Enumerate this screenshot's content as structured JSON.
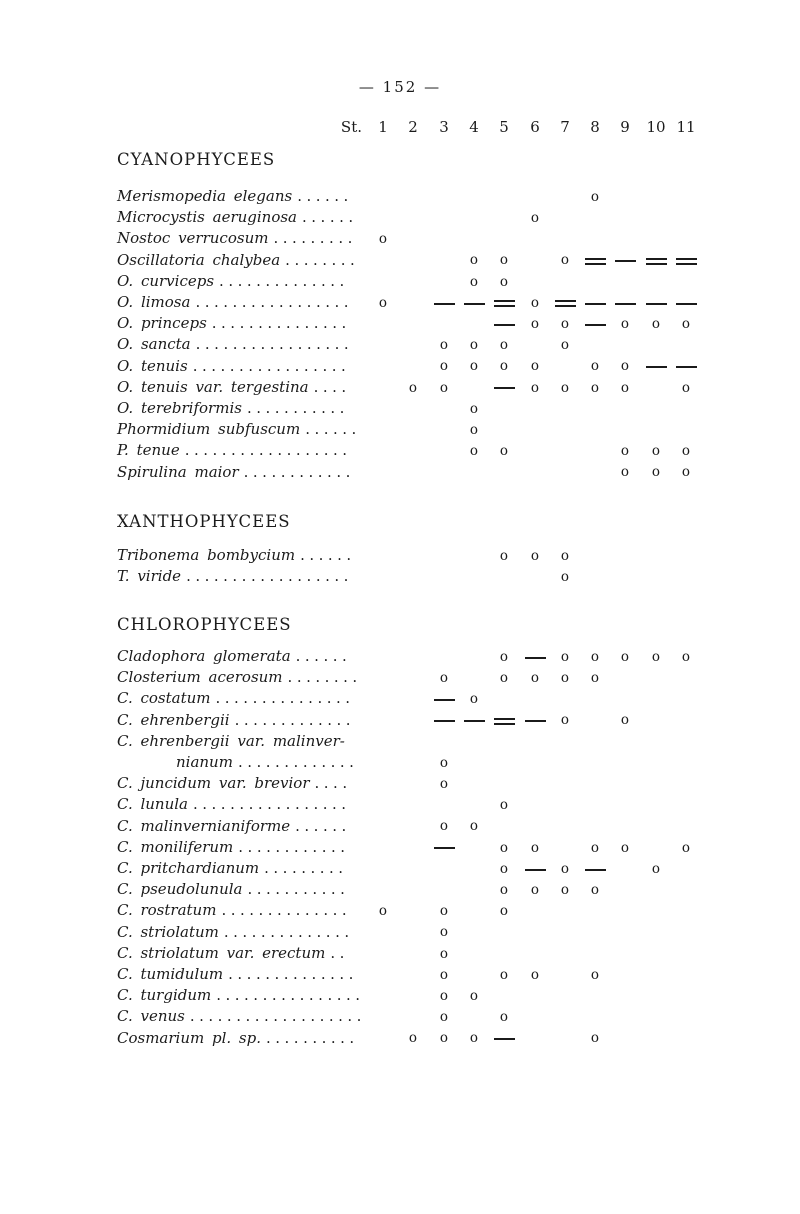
{
  "page": {
    "number_label": "— 152 —"
  },
  "colors": {
    "ink": "#1b1b1b",
    "paper": "#ffffff"
  },
  "table": {
    "station_header_label": "St.",
    "stations": [
      "1",
      "2",
      "3",
      "4",
      "5",
      "6",
      "7",
      "8",
      "9",
      "10",
      "11"
    ],
    "symbols": {
      "o": "present-circle",
      "-": "single-dash",
      "=": "double-dash"
    },
    "sections": [
      {
        "heading": "CYANOPHYCEES",
        "rows": [
          {
            "name": "Merismopedia elegans",
            "dots": "......",
            "marks": {
              "8": "o"
            }
          },
          {
            "name": "Microcystis aeruginosa",
            "dots": "......",
            "marks": {
              "6": "o"
            }
          },
          {
            "name": "Nostoc verrucosum",
            "dots": ".........",
            "marks": {
              "1": "o"
            }
          },
          {
            "name": "Oscillatoria chalybea",
            "dots": "........",
            "marks": {
              "4": "o",
              "5": "o",
              "7": "o",
              "8": "=",
              "9": "-",
              "10": "=",
              "11": "="
            }
          },
          {
            "name": "O. curviceps",
            "dots": "..............",
            "marks": {
              "4": "o",
              "5": "o"
            }
          },
          {
            "name": "O. limosa",
            "dots": ".................",
            "marks": {
              "1": "o",
              "3": "-",
              "4": "-",
              "5": "=",
              "6": "o",
              "7": "=",
              "8": "-",
              "9": "-",
              "10": "-",
              "11": "-"
            }
          },
          {
            "name": "O. princeps",
            "dots": "...............",
            "marks": {
              "5": "-",
              "6": "o",
              "7": "o",
              "8": "-",
              "9": "o",
              "10": "o",
              "11": "o"
            }
          },
          {
            "name": "O. sancta",
            "dots": ".................",
            "marks": {
              "3": "o",
              "4": "o",
              "5": "o",
              "7": "o"
            }
          },
          {
            "name": "O. tenuis",
            "dots": ".................",
            "marks": {
              "3": "o",
              "4": "o",
              "5": "o",
              "6": "o",
              "8": "o",
              "9": "o",
              "10": "-",
              "11": "-"
            }
          },
          {
            "name": "O. tenuis var. tergestina",
            "dots": "....",
            "marks": {
              "2": "o",
              "3": "o",
              "5": "-",
              "6": "o",
              "7": "o",
              "8": "o",
              "9": "o",
              "11": "o"
            }
          },
          {
            "name": "O. terebriformis",
            "dots": "...........",
            "marks": {
              "4": "o"
            }
          },
          {
            "name": "Phormidium subfuscum",
            "dots": "......",
            "marks": {
              "4": "o"
            }
          },
          {
            "name": "P. tenue",
            "dots": "..................",
            "marks": {
              "4": "o",
              "5": "o",
              "9": "o",
              "10": "o",
              "11": "o"
            }
          },
          {
            "name": "Spirulina maior",
            "dots": "............",
            "marks": {
              "9": "o",
              "10": "o",
              "11": "o"
            }
          }
        ]
      },
      {
        "heading": "XANTHOPHYCEES",
        "rows": [
          {
            "name": "Tribonema bombycium",
            "dots": "......",
            "marks": {
              "5": "o",
              "6": "o",
              "7": "o"
            }
          },
          {
            "name": "T. viride",
            "dots": "..................",
            "marks": {
              "7": "o"
            }
          }
        ]
      },
      {
        "heading": "CHLOROPHYCEES",
        "rows": [
          {
            "name": "Cladophora glomerata",
            "dots": "......",
            "marks": {
              "5": "o",
              "6": "-",
              "7": "o",
              "8": "o",
              "9": "o",
              "10": "o",
              "11": "o"
            }
          },
          {
            "name": "Closterium acerosum",
            "dots": "........",
            "marks": {
              "3": "o",
              "5": "o",
              "6": "o",
              "7": "o",
              "8": "o"
            }
          },
          {
            "name": "C. costatum",
            "dots": "...............",
            "marks": {
              "3": "-",
              "4": "o"
            }
          },
          {
            "name": "C. ehrenbergii",
            "dots": ".............",
            "marks": {
              "3": "-",
              "4": "-",
              "5": "=",
              "6": "-",
              "7": "o",
              "9": "o"
            }
          },
          {
            "name": "C. ehrenbergii var. malinver-",
            "name2": "nianum",
            "dots": ".............",
            "marks": {
              "3": "o"
            }
          },
          {
            "name": "C. juncidum var. brevior",
            "dots": "....",
            "marks": {
              "3": "o"
            }
          },
          {
            "name": "C. lunula",
            "dots": ".................",
            "marks": {
              "5": "o"
            }
          },
          {
            "name": "C. malinvernianiforme",
            "dots": "......",
            "marks": {
              "3": "o",
              "4": "o"
            }
          },
          {
            "name": "C. moniliferum",
            "dots": "............",
            "marks": {
              "3": "-",
              "5": "o",
              "6": "o",
              "8": "o",
              "9": "o",
              "11": "o"
            }
          },
          {
            "name": "C. pritchardianum",
            "dots": ".........",
            "marks": {
              "5": "o",
              "6": "-",
              "7": "o",
              "8": "-",
              "10": "o"
            }
          },
          {
            "name": "C. pseudolunula",
            "dots": "...........",
            "marks": {
              "5": "o",
              "6": "o",
              "7": "o",
              "8": "o"
            }
          },
          {
            "name": "C. rostratum",
            "dots": "..............",
            "marks": {
              "1": "o",
              "3": "o",
              "5": "o"
            }
          },
          {
            "name": "C. striolatum",
            "dots": "..............",
            "marks": {
              "3": "o"
            }
          },
          {
            "name": "C. striolatum var. erectum",
            "dots": "..",
            "marks": {
              "3": "o"
            }
          },
          {
            "name": "C. tumidulum",
            "dots": "..............",
            "marks": {
              "3": "o",
              "5": "o",
              "6": "o",
              "8": "o"
            }
          },
          {
            "name": "C. turgidum",
            "dots": "................",
            "marks": {
              "3": "o",
              "4": "o"
            }
          },
          {
            "name": "C. venus",
            "dots": "...................",
            "marks": {
              "3": "o",
              "5": "o"
            }
          },
          {
            "name": "Cosmarium pl. sp.",
            "dots": "..........",
            "marks": {
              "2": "o",
              "3": "o",
              "4": "o",
              "5": "-",
              "8": "o"
            }
          }
        ]
      }
    ]
  }
}
